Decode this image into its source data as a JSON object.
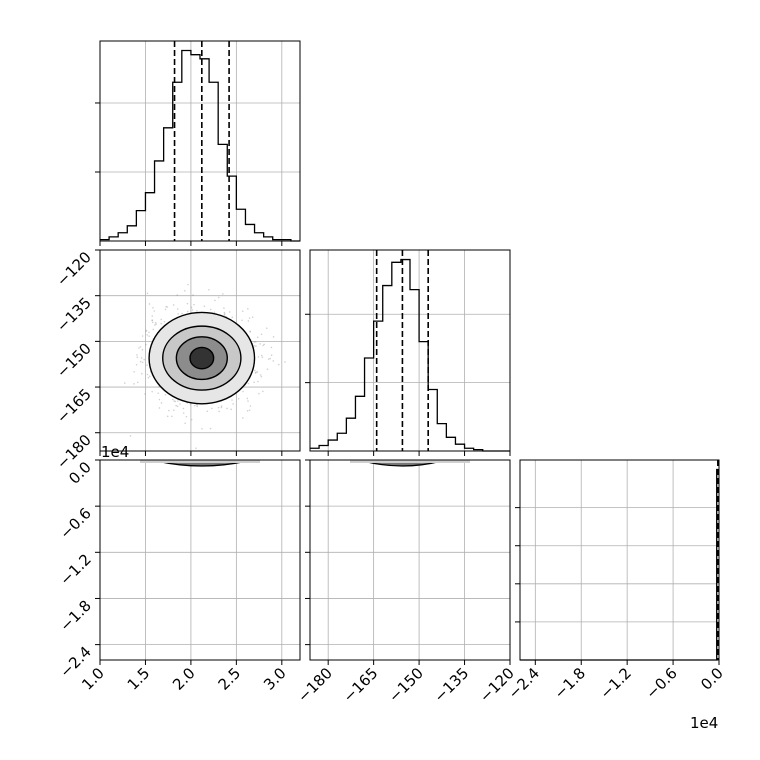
{
  "chart_data": {
    "type": "corner",
    "grid": true,
    "parameters": [
      {
        "range": [
          1.0,
          3.2
        ],
        "ticks": [
          "1.0",
          "1.5",
          "2.0",
          "2.5",
          "3.0"
        ],
        "tick_values": [
          1.0,
          1.5,
          2.0,
          2.5,
          3.0
        ],
        "quantiles": [
          1.82,
          2.12,
          2.42
        ]
      },
      {
        "range": [
          -186,
          -120
        ],
        "ticks": [
          "−180",
          "−165",
          "−150",
          "−135",
          "−120"
        ],
        "tick_values": [
          -180,
          -165,
          -150,
          -135,
          -120
        ],
        "quantiles": [
          -164,
          -155.5,
          -147
        ]
      },
      {
        "range": [
          -2.6,
          0.0
        ],
        "ticks": [
          "−2.4",
          "−1.8",
          "−1.2",
          "−0.6",
          "0.0"
        ],
        "tick_values": [
          -2.4,
          -1.8,
          -1.2,
          -0.6,
          0.0
        ],
        "offset_label": "1e4",
        "quantiles": [
          -0.003,
          -0.001,
          -0.0005
        ]
      }
    ],
    "histograms": [
      {
        "bin_edges": [
          1.0,
          1.1,
          1.2,
          1.3,
          1.4,
          1.5,
          1.6,
          1.7,
          1.8,
          1.9,
          2.0,
          2.1,
          2.2,
          2.3,
          2.4,
          2.5,
          2.6,
          2.7,
          2.8,
          2.9,
          3.0,
          3.1,
          3.2
        ],
        "counts": [
          1,
          3,
          6,
          11,
          22,
          35,
          58,
          82,
          115,
          138,
          135,
          132,
          115,
          70,
          47,
          23,
          12,
          6,
          3,
          1,
          1,
          0
        ]
      },
      {
        "bin_edges": [
          -186,
          -183,
          -180,
          -177,
          -174,
          -171,
          -168,
          -165,
          -162,
          -159,
          -156,
          -153,
          -150,
          -147,
          -144,
          -141,
          -138,
          -135,
          -132,
          -129,
          -126,
          -123,
          -120
        ],
        "counts": [
          2,
          4,
          8,
          13,
          24,
          40,
          68,
          95,
          121,
          138,
          140,
          118,
          80,
          45,
          20,
          10,
          5,
          2,
          1,
          0,
          0,
          0
        ]
      },
      {
        "bin_edges": [
          -2.6,
          -0.04,
          -0.03,
          0.0
        ],
        "counts": [
          0,
          0,
          1
        ]
      }
    ],
    "contours_p0_p1": {
      "center": [
        2.12,
        -155.5
      ],
      "levels": [
        {
          "rx": 0.58,
          "ry": 15.0
        },
        {
          "rx": 0.43,
          "ry": 10.5
        },
        {
          "rx": 0.28,
          "ry": 7.0
        },
        {
          "rx": 0.13,
          "ry": 3.5
        }
      ]
    }
  }
}
